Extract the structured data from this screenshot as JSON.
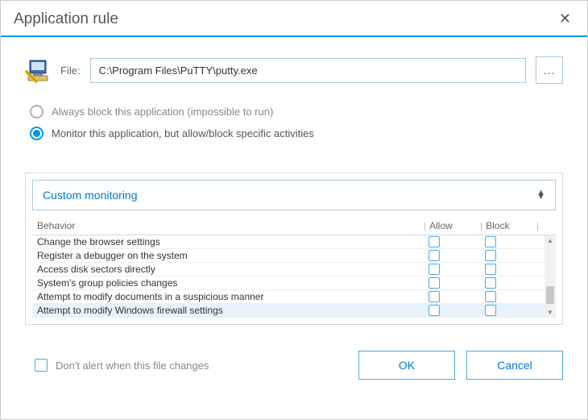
{
  "colors": {
    "accent": "#0099e6",
    "link": "#0078d4",
    "border_input": "#a8c8e0",
    "border_panel": "#d0d8e0",
    "text_muted": "#888888",
    "text_body": "#333333",
    "row_highlight": "#e8f2fc",
    "checkbox_border": "#4aa8e8"
  },
  "title": "Application rule",
  "file": {
    "label": "File:",
    "path": "C:\\Program Files\\PuTTY\\putty.exe",
    "browse": "..."
  },
  "mode": {
    "options": [
      {
        "id": "block",
        "label": "Always block this application (impossible to run)",
        "selected": false
      },
      {
        "id": "monitor",
        "label": "Monitor this application, but allow/block specific activities",
        "selected": true
      }
    ]
  },
  "monitoring": {
    "preset": "Custom monitoring",
    "columns": {
      "behavior": "Behavior",
      "allow": "Allow",
      "block": "Block"
    },
    "rows": [
      {
        "label": "Change the browser settings",
        "allow": false,
        "block": false,
        "highlight": false
      },
      {
        "label": "Register a debugger on the system",
        "allow": false,
        "block": false,
        "highlight": false
      },
      {
        "label": "Access disk sectors directly",
        "allow": false,
        "block": false,
        "highlight": false
      },
      {
        "label": "System's group policies changes",
        "allow": false,
        "block": false,
        "highlight": false
      },
      {
        "label": "Attempt to modify documents in a suspicious manner",
        "allow": false,
        "block": false,
        "highlight": false
      },
      {
        "label": "Attempt to modify Windows firewall settings",
        "allow": false,
        "block": false,
        "highlight": true
      }
    ]
  },
  "footer": {
    "dont_alert": "Don't alert when this file changes",
    "ok": "OK",
    "cancel": "Cancel"
  }
}
